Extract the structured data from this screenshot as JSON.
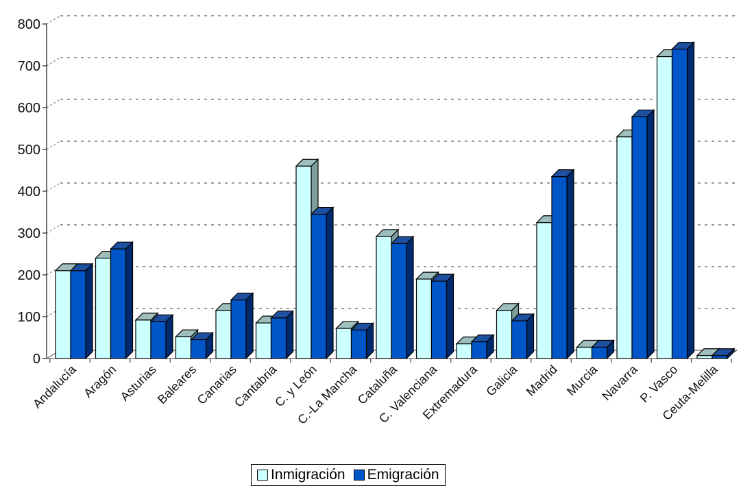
{
  "chart_data": {
    "type": "bar",
    "title": "",
    "xlabel": "",
    "ylabel": "",
    "ylim": [
      0,
      800
    ],
    "yticks": [
      0,
      100,
      200,
      300,
      400,
      500,
      600,
      700,
      800
    ],
    "grid": true,
    "legend_position": "bottom",
    "categories": [
      "Andalucía",
      "Aragón",
      "Asturias",
      "Baleares",
      "Canarias",
      "Cantabria",
      "C. y León",
      "C.-La Mancha",
      "Cataluña",
      "C. Valenciana",
      "Extremadura",
      "Galicia",
      "Madrid",
      "Murcia",
      "Navarra",
      "P. Vasco",
      "Ceuta-Melilla"
    ],
    "series": [
      {
        "name": "Inmigración",
        "color": "#ccffff",
        "values": [
          210,
          240,
          92,
          52,
          115,
          85,
          460,
          72,
          292,
          190,
          35,
          115,
          325,
          27,
          530,
          722,
          7
        ]
      },
      {
        "name": "Emigración",
        "color": "#0055c8",
        "values": [
          210,
          262,
          88,
          45,
          140,
          97,
          345,
          68,
          275,
          185,
          40,
          90,
          435,
          27,
          578,
          740,
          7
        ]
      }
    ]
  }
}
